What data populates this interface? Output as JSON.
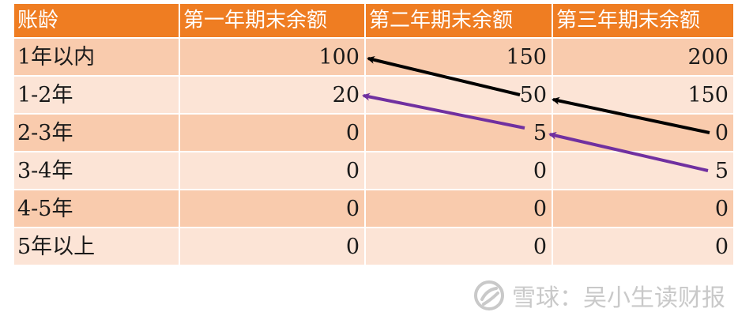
{
  "table": {
    "headers": [
      "账龄",
      "第一年期末余额",
      "第二年期末余额",
      "第三年期末余额"
    ],
    "rows": [
      {
        "label": "1年以内",
        "y1": "100",
        "y2": "150",
        "y3": "200"
      },
      {
        "label": "1-2年",
        "y1": "20",
        "y2": "50",
        "y3": "150"
      },
      {
        "label": "2-3年",
        "y1": "0",
        "y2": "5",
        "y3": "0"
      },
      {
        "label": "3-4年",
        "y1": "0",
        "y2": "0",
        "y3": "5"
      },
      {
        "label": "4-5年",
        "y1": "0",
        "y2": "0",
        "y3": "0"
      },
      {
        "label": "5年以上",
        "y1": "0",
        "y2": "0",
        "y3": "0"
      }
    ]
  },
  "colors": {
    "header_bg": "#ef7d22",
    "row_dark": "#f9cbad",
    "row_light": "#fce4d6",
    "arrow_black": "#000000",
    "arrow_purple": "#7030a0",
    "watermark": "#c9c9c9"
  },
  "watermark": {
    "text": "雪球：吴小生读财报",
    "icon": "snowball-logo-icon"
  }
}
